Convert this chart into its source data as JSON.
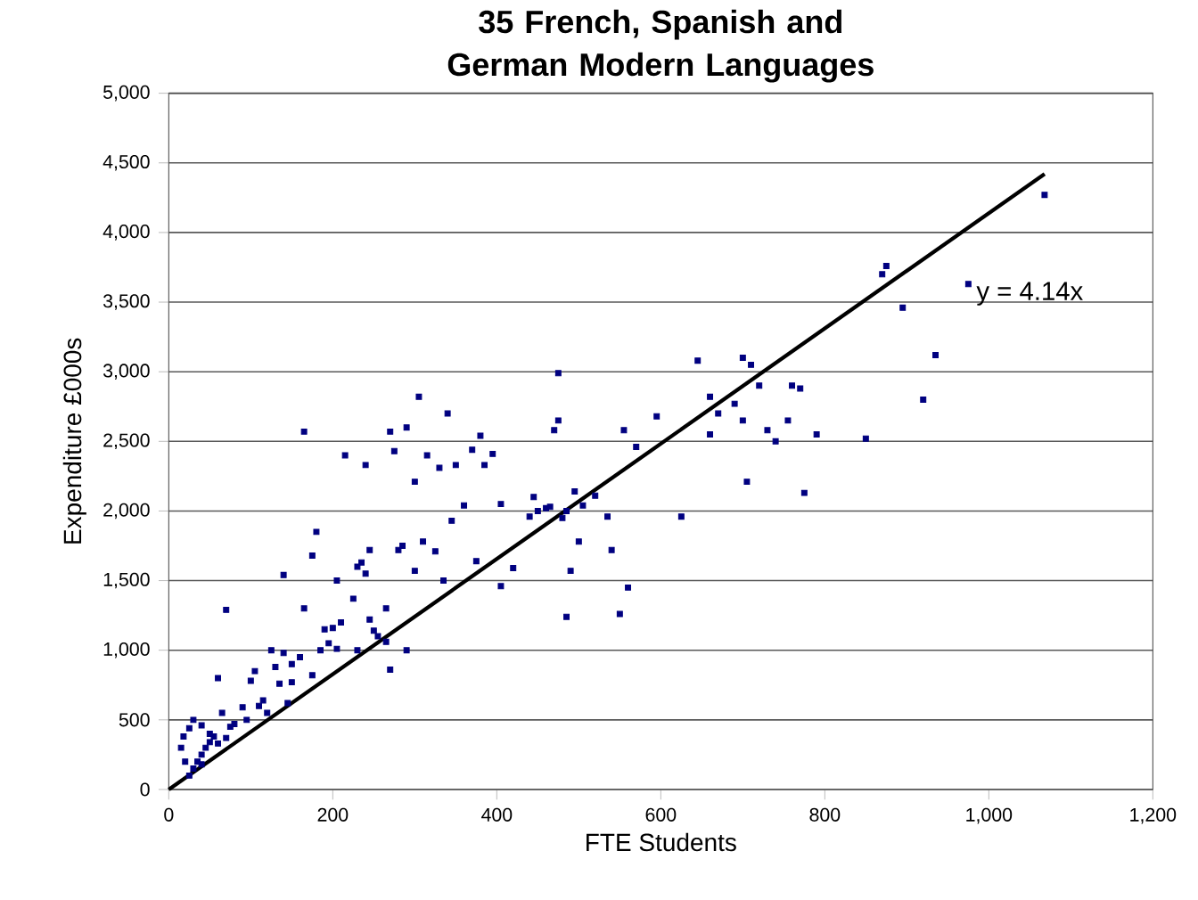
{
  "chart_data": {
    "type": "scatter",
    "title": "35 French, Spanish and German Modern Languages",
    "xlabel": "FTE Students",
    "ylabel": "Expenditure £000s",
    "xlim": [
      0,
      1200
    ],
    "ylim": [
      0,
      5000
    ],
    "xticks": [
      0,
      200,
      400,
      600,
      800,
      {
        "value": 1000,
        "label": "1,000"
      },
      {
        "value": 1200,
        "label": "1,200"
      }
    ],
    "yticks": [
      0,
      500,
      {
        "value": 1000,
        "label": "1,000"
      },
      {
        "value": 1500,
        "label": "1,500"
      },
      {
        "value": 2000,
        "label": "2,000"
      },
      {
        "value": 2500,
        "label": "2,500"
      },
      {
        "value": 3000,
        "label": "3,000"
      },
      {
        "value": 3500,
        "label": "3,500"
      },
      {
        "value": 4000,
        "label": "4,000"
      },
      {
        "value": 4500,
        "label": "4,500"
      },
      {
        "value": 5000,
        "label": "5,000"
      }
    ],
    "grid": "y",
    "annotations": [
      "y = 4.14x"
    ],
    "series": [
      {
        "type": "scatter",
        "color": "#000080",
        "marker": "square",
        "x": [
          1068,
          975,
          935,
          920,
          895,
          875,
          870,
          850,
          790,
          770,
          775,
          760,
          755,
          740,
          730,
          720,
          700,
          710,
          705,
          700,
          690,
          670,
          660,
          660,
          645,
          625,
          595,
          570,
          560,
          555,
          550,
          540,
          535,
          520,
          505,
          500,
          495,
          490,
          485,
          485,
          480,
          475,
          475,
          470,
          465,
          460,
          450,
          445,
          440,
          420,
          405,
          405,
          395,
          385,
          380,
          370,
          375,
          360,
          350,
          345,
          340,
          330,
          335,
          325,
          315,
          310,
          305,
          300,
          300,
          290,
          285,
          280,
          290,
          275,
          270,
          265,
          270,
          265,
          255,
          250,
          245,
          245,
          240,
          240,
          235,
          230,
          230,
          225,
          215,
          210,
          205,
          205,
          200,
          195,
          190,
          185,
          180,
          175,
          175,
          165,
          165,
          160,
          150,
          150,
          145,
          140,
          140,
          135,
          130,
          125,
          120,
          115,
          110,
          105,
          100,
          95,
          90,
          80,
          75,
          70,
          70,
          65,
          60,
          55,
          50,
          45,
          40,
          40,
          35,
          30,
          30,
          25,
          25,
          20,
          18,
          15,
          40,
          50,
          60
        ],
        "values": [
          4270,
          3630,
          3120,
          2800,
          3460,
          3760,
          3700,
          2520,
          2550,
          2880,
          2130,
          2900,
          2650,
          2500,
          2580,
          2900,
          3100,
          3050,
          2210,
          2650,
          2770,
          2700,
          2550,
          2820,
          3080,
          1960,
          2680,
          2460,
          1450,
          2580,
          1260,
          1720,
          1960,
          2110,
          2040,
          1780,
          2140,
          1570,
          2000,
          1240,
          1950,
          2650,
          2990,
          2580,
          2030,
          2020,
          2000,
          2100,
          1960,
          1590,
          2050,
          1460,
          2410,
          2330,
          2540,
          2440,
          1640,
          2040,
          2330,
          1930,
          2700,
          2310,
          1500,
          1710,
          2400,
          1780,
          2820,
          1570,
          2210,
          2600,
          1750,
          1720,
          1000,
          2430,
          2570,
          1300,
          860,
          1060,
          1100,
          1140,
          1220,
          1720,
          2330,
          1550,
          1630,
          1600,
          1000,
          1370,
          2400,
          1200,
          1010,
          1500,
          1160,
          1050,
          1150,
          1000,
          1850,
          1680,
          820,
          2570,
          1300,
          950,
          900,
          770,
          620,
          1540,
          980,
          760,
          880,
          1000,
          550,
          640,
          600,
          850,
          780,
          500,
          590,
          470,
          450,
          1290,
          370,
          550,
          800,
          380,
          400,
          300,
          460,
          250,
          200,
          500,
          150,
          440,
          100,
          200,
          380,
          300,
          180,
          340,
          330
        ]
      },
      {
        "type": "line",
        "color": "#000000",
        "marker": "none",
        "line_style": "solid",
        "x": [
          0,
          1068
        ],
        "values": [
          0,
          4420
        ]
      }
    ]
  }
}
